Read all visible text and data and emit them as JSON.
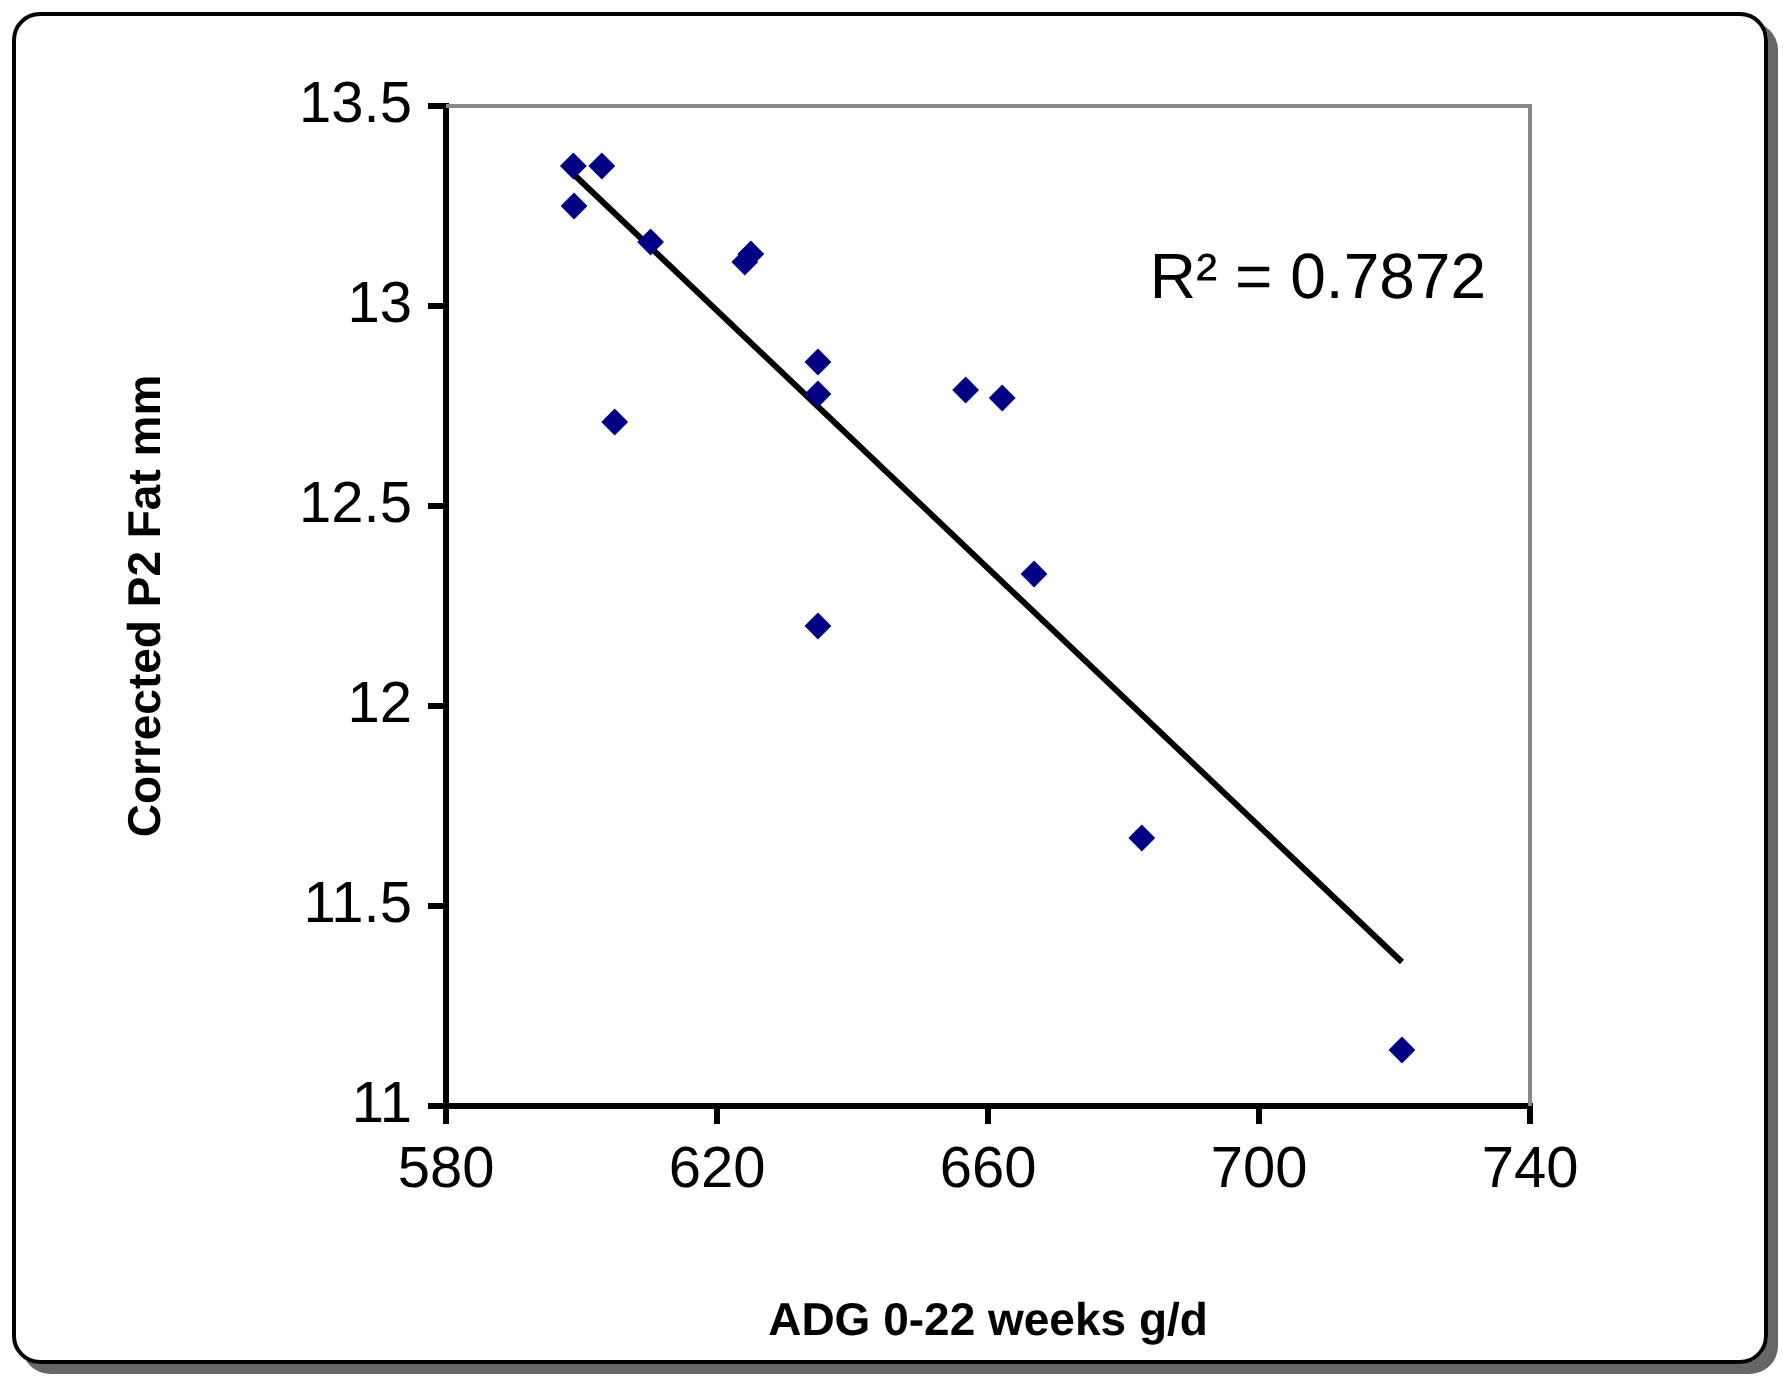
{
  "chart_data": {
    "type": "scatter",
    "xlabel": "ADG 0-22 weeks g/d",
    "ylabel": "Corrected P2 Fat mm",
    "xlim": [
      580,
      740
    ],
    "xticks": [
      580,
      620,
      660,
      700,
      740
    ],
    "ylim": [
      11,
      13.5
    ],
    "yticks": [
      11,
      11.5,
      12,
      12.5,
      13,
      13.5
    ],
    "grid": false,
    "legend": false,
    "annotations": [
      "R² = 0.7872"
    ],
    "series": [
      {
        "marker": "diamond",
        "color": "#000080",
        "x": [
          598.8,
          603.0,
          598.9,
          610.2,
          625.0,
          624.1,
          634.9,
          634.9,
          604.9,
          634.9,
          656.7,
          662.1,
          666.8,
          682.7,
          721.1
        ],
        "values": [
          13.35,
          13.35,
          13.25,
          13.16,
          13.13,
          13.11,
          12.86,
          12.78,
          12.71,
          12.2,
          12.79,
          12.77,
          12.33,
          11.67,
          11.14
        ]
      },
      {
        "type": "line",
        "marker": "none",
        "color": "#000000",
        "x": [
          598.8,
          721.1
        ],
        "values": [
          13.33,
          11.36
        ]
      }
    ]
  }
}
